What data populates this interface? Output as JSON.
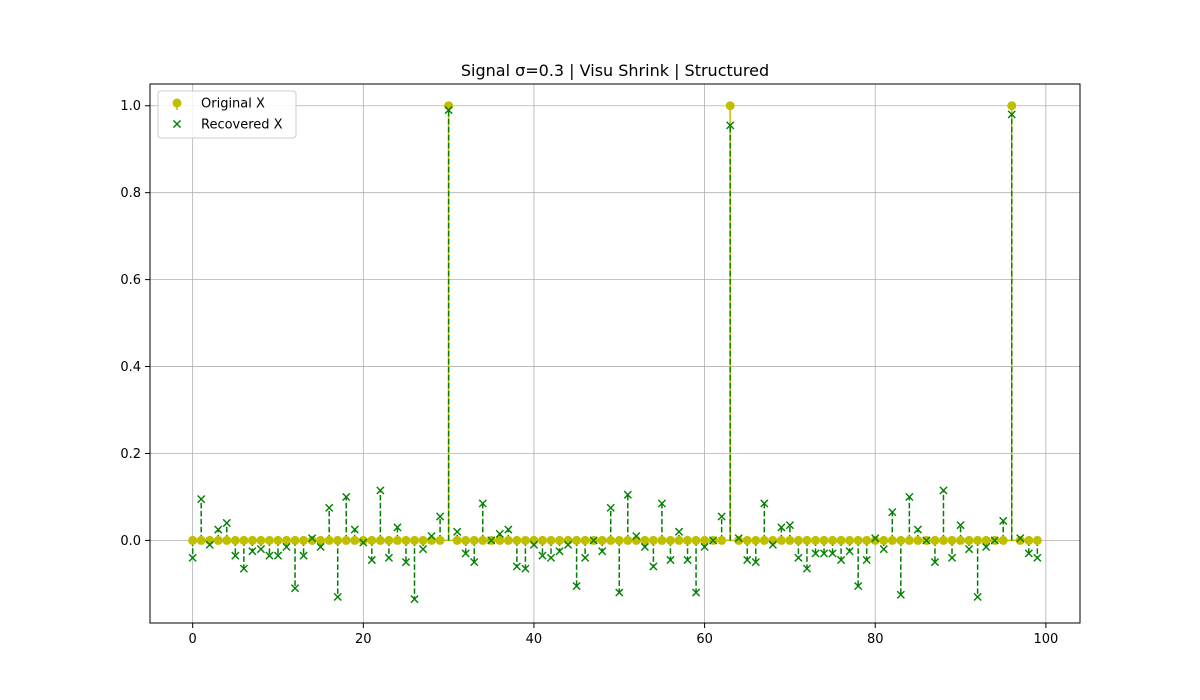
{
  "chart_data": {
    "type": "scatter",
    "title": "Signal σ=0.3 | Visu Shrink | Structured",
    "xlabel": "",
    "ylabel": "",
    "xlim": [
      -5,
      104
    ],
    "ylim": [
      -0.19,
      1.05
    ],
    "xticks": [
      0,
      20,
      40,
      60,
      80,
      100
    ],
    "yticks": [
      0.0,
      0.2,
      0.4,
      0.6,
      0.8,
      1.0
    ],
    "xtick_labels": [
      "0",
      "20",
      "40",
      "60",
      "80",
      "100"
    ],
    "ytick_labels": [
      "0.0",
      "0.2",
      "0.4",
      "0.6",
      "0.8",
      "1.0"
    ],
    "grid": true,
    "legend_position": "top-left",
    "series": [
      {
        "name": "Original X",
        "marker": "circle",
        "color": "#bfbf00",
        "stem_style": "solid",
        "values": [
          0,
          0,
          0,
          0,
          0,
          0,
          0,
          0,
          0,
          0,
          0,
          0,
          0,
          0,
          0,
          0,
          0,
          0,
          0,
          0,
          0,
          0,
          0,
          0,
          0,
          0,
          0,
          0,
          0,
          0,
          1,
          0,
          0,
          0,
          0,
          0,
          0,
          0,
          0,
          0,
          0,
          0,
          0,
          0,
          0,
          0,
          0,
          0,
          0,
          0,
          0,
          0,
          0,
          0,
          0,
          0,
          0,
          0,
          0,
          0,
          0,
          0,
          0,
          1,
          0,
          0,
          0,
          0,
          0,
          0,
          0,
          0,
          0,
          0,
          0,
          0,
          0,
          0,
          0,
          0,
          0,
          0,
          0,
          0,
          0,
          0,
          0,
          0,
          0,
          0,
          0,
          0,
          0,
          0,
          0,
          0,
          1,
          0,
          0,
          0
        ]
      },
      {
        "name": "Recovered X",
        "marker": "x",
        "color": "#008000",
        "stem_style": "dashed",
        "values": [
          -0.04,
          0.095,
          -0.01,
          0.025,
          0.04,
          -0.035,
          -0.065,
          -0.025,
          -0.02,
          -0.035,
          -0.035,
          -0.015,
          -0.11,
          -0.035,
          0.005,
          -0.015,
          0.075,
          -0.13,
          0.1,
          0.025,
          -0.005,
          -0.045,
          0.115,
          -0.04,
          0.03,
          -0.05,
          -0.135,
          -0.02,
          0.01,
          0.055,
          0.99,
          0.02,
          -0.03,
          -0.05,
          0.085,
          0.0,
          0.015,
          0.025,
          -0.06,
          -0.065,
          -0.01,
          -0.035,
          -0.04,
          -0.025,
          -0.01,
          -0.105,
          -0.04,
          0.0,
          -0.025,
          0.075,
          -0.12,
          0.105,
          0.01,
          -0.015,
          -0.06,
          0.085,
          -0.045,
          0.02,
          -0.045,
          -0.12,
          -0.015,
          0.0,
          0.055,
          0.955,
          0.005,
          -0.045,
          -0.05,
          0.085,
          -0.01,
          0.03,
          0.035,
          -0.04,
          -0.065,
          -0.03,
          -0.03,
          -0.03,
          -0.045,
          -0.025,
          -0.105,
          -0.045,
          0.005,
          -0.02,
          0.065,
          -0.125,
          0.1,
          0.025,
          0.0,
          -0.05,
          0.115,
          -0.04,
          0.035,
          -0.02,
          -0.13,
          -0.015,
          0.0,
          0.045,
          0.98,
          0.005,
          -0.03,
          -0.04
        ]
      }
    ]
  }
}
